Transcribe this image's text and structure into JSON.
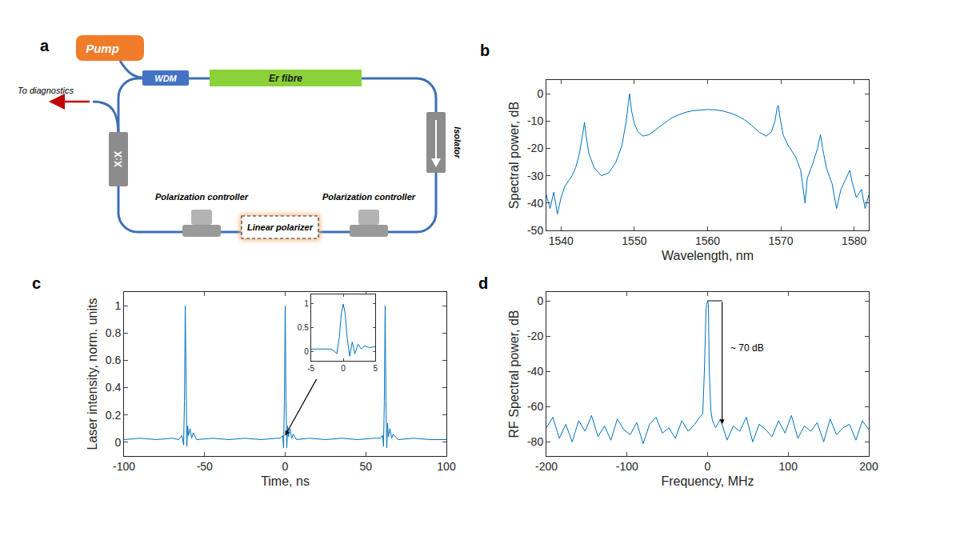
{
  "diagram": {
    "panel": "a",
    "pump": "Pump",
    "wdm": "WDM",
    "fibre": "Er fibre",
    "isolator": "Isolator",
    "polarization_controllers": [
      "Polarization controller",
      "Polarization controller"
    ],
    "polarizer": "Linear polarizer",
    "coupler": "X:X",
    "output": "To diagnostics"
  },
  "chart_data": [
    {
      "panel": "b",
      "type": "line",
      "x_label": "Wavelength, nm",
      "y_label": "Spectral power, dB",
      "color": "#0072bd",
      "grid": false,
      "xlim": [
        1538,
        1582
      ],
      "ylim": [
        -50,
        5
      ],
      "xticks": [
        1540,
        1550,
        1560,
        1570,
        1580
      ],
      "yticks": [
        -50,
        -40,
        -30,
        -20,
        -10,
        0
      ],
      "x": [
        1538,
        1538.5,
        1539,
        1539.5,
        1540,
        1540.5,
        1541,
        1541.5,
        1542,
        1542.5,
        1543,
        1543.2,
        1543.4,
        1543.8,
        1544.5,
        1545.5,
        1546.5,
        1547.5,
        1548.3,
        1548.9,
        1549.2,
        1549.35,
        1549.6,
        1550,
        1550.5,
        1551.2,
        1552,
        1553,
        1554,
        1555,
        1556,
        1557,
        1558,
        1559,
        1560,
        1561,
        1562,
        1563,
        1564,
        1565,
        1566,
        1567,
        1568,
        1568.7,
        1569.2,
        1569.5,
        1569.65,
        1569.9,
        1570.3,
        1571,
        1572,
        1572.7,
        1573.3,
        1573.6,
        1574.3,
        1575,
        1575.4,
        1575.7,
        1576.2,
        1577,
        1577.6,
        1578.2,
        1579,
        1579.4,
        1579.7,
        1580.3,
        1581,
        1581.5,
        1582
      ],
      "values": [
        -37,
        -42,
        -36,
        -44,
        -38,
        -34,
        -32,
        -30,
        -27,
        -22,
        -14,
        -10.5,
        -15,
        -22,
        -27,
        -30,
        -29,
        -25,
        -19,
        -10,
        -3,
        0,
        -6,
        -11,
        -14,
        -15.5,
        -15,
        -13,
        -11,
        -9,
        -7.8,
        -6.8,
        -6.2,
        -5.9,
        -5.8,
        -5.9,
        -6.3,
        -7,
        -8,
        -9.5,
        -11.5,
        -14,
        -15.5,
        -14,
        -10,
        -5,
        -4.3,
        -9,
        -15,
        -19,
        -23,
        -28,
        -40,
        -31,
        -26,
        -20,
        -15,
        -20,
        -27,
        -33,
        -42,
        -35,
        -30,
        -28,
        -32,
        -38,
        -35,
        -42,
        -37
      ]
    },
    {
      "panel": "c",
      "type": "line",
      "x_label": "Time, ns",
      "y_label": "Laser intensity, norm. units",
      "color": "#0072bd",
      "grid": false,
      "xlim": [
        -100,
        100
      ],
      "ylim": [
        -0.1,
        1.1
      ],
      "xticks": [
        -100,
        -50,
        0,
        50,
        100
      ],
      "yticks": [
        0,
        0.2,
        0.4,
        0.6,
        0.8,
        1
      ],
      "x": [
        -100,
        -90,
        -80,
        -70,
        -66,
        -64,
        -63,
        -62.5,
        -62,
        -61.5,
        -61,
        -60.5,
        -60,
        -59,
        -58,
        -57,
        -55,
        -45,
        -35,
        -25,
        -15,
        -5,
        -3,
        -1.5,
        -1,
        -0.5,
        0,
        0.5,
        1,
        1.5,
        2,
        3,
        4,
        5,
        7,
        15,
        25,
        35,
        45,
        55,
        59,
        60.5,
        61,
        61.5,
        62,
        62.5,
        63,
        63.5,
        64,
        65,
        66,
        67,
        70,
        80,
        90,
        100
      ],
      "values": [
        0.02,
        0.03,
        0.02,
        0.03,
        0.02,
        0.05,
        -0.02,
        0.3,
        1,
        0.3,
        -0.03,
        0.12,
        0.05,
        0.1,
        0.03,
        0.07,
        0.02,
        0.03,
        0.02,
        0.03,
        0.02,
        0.03,
        0.03,
        0.05,
        -0.04,
        0.3,
        1,
        0.3,
        -0.04,
        0.12,
        0.04,
        0.1,
        0.03,
        0.06,
        0.02,
        0.03,
        0.02,
        0.03,
        0.02,
        0.03,
        0.03,
        0.05,
        -0.03,
        0.3,
        1,
        0.3,
        -0.04,
        0.14,
        0.04,
        0.1,
        0.03,
        0.06,
        0.02,
        0.03,
        0.02,
        0.02
      ],
      "inset": {
        "xlim": [
          -5,
          5
        ],
        "ylim": [
          -0.2,
          1.2
        ],
        "xticks": [
          -5,
          0,
          5
        ],
        "yticks": [
          0,
          0.5,
          1
        ],
        "x": [
          -5,
          -4,
          -3,
          -2,
          -1.5,
          -1,
          -0.6,
          -0.3,
          0,
          0.3,
          0.6,
          1,
          1.4,
          1.8,
          2.3,
          2.8,
          3.3,
          4,
          5
        ],
        "values": [
          0.05,
          0.05,
          0.06,
          0.05,
          0.02,
          -0.05,
          0.3,
          0.8,
          1,
          0.8,
          0.3,
          -0.1,
          0.2,
          -0.05,
          0.15,
          0.05,
          0.12,
          0.08,
          0.1
        ],
        "points_to": {
          "x": 0,
          "y": 0.05
        }
      }
    },
    {
      "panel": "d",
      "type": "line",
      "x_label": "Frequency, MHz",
      "y_label": "RF Spectral power, dB",
      "color": "#0072bd",
      "grid": false,
      "xlim": [
        -200,
        200
      ],
      "ylim": [
        -88,
        5
      ],
      "xticks": [
        -200,
        -100,
        0,
        100,
        200
      ],
      "yticks": [
        -80,
        -60,
        -40,
        -20,
        0
      ],
      "x": [
        -200,
        -192,
        -184,
        -176,
        -168,
        -160,
        -152,
        -144,
        -136,
        -128,
        -120,
        -112,
        -104,
        -96,
        -88,
        -80,
        -72,
        -64,
        -56,
        -48,
        -40,
        -32,
        -24,
        -16,
        -10,
        -6,
        -4,
        -2,
        -1,
        0,
        1,
        2,
        4,
        6,
        10,
        16,
        24,
        32,
        40,
        48,
        56,
        64,
        72,
        80,
        88,
        96,
        104,
        112,
        120,
        128,
        136,
        144,
        152,
        160,
        168,
        176,
        184,
        192,
        200
      ],
      "values": [
        -72,
        -66,
        -78,
        -70,
        -80,
        -68,
        -74,
        -65,
        -77,
        -71,
        -79,
        -67,
        -73,
        -76,
        -69,
        -81,
        -70,
        -66,
        -75,
        -72,
        -78,
        -68,
        -74,
        -70,
        -66,
        -64,
        -40,
        -5,
        -2,
        0,
        -2,
        -38,
        -62,
        -68,
        -72,
        -67,
        -79,
        -71,
        -74,
        -66,
        -80,
        -70,
        -73,
        -77,
        -68,
        -75,
        -65,
        -78,
        -71,
        -74,
        -69,
        -80,
        -67,
        -76,
        -72,
        -70,
        -79,
        -68,
        -73
      ],
      "annotations": [
        {
          "text": "~ 70 dB",
          "x": 18,
          "y_from": 0,
          "y_to": -70
        }
      ]
    }
  ]
}
